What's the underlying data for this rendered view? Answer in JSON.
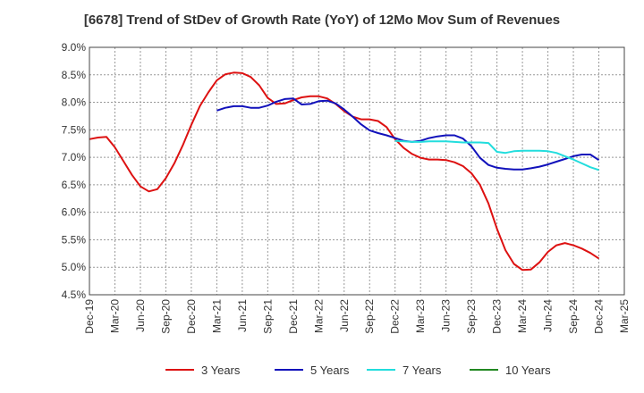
{
  "chart_data": {
    "type": "line",
    "title": "[6678]  Trend of StDev of Growth Rate (YoY) of 12Mo Mov Sum of Revenues",
    "xlabel": "",
    "ylabel": "",
    "ylim": [
      4.5,
      9.0
    ],
    "yticks": [
      "9.0%",
      "8.5%",
      "8.0%",
      "7.5%",
      "7.0%",
      "6.5%",
      "6.0%",
      "5.5%",
      "5.0%",
      "4.5%"
    ],
    "ytick_values": [
      9.0,
      8.5,
      8.0,
      7.5,
      7.0,
      6.5,
      6.0,
      5.5,
      5.0,
      4.5
    ],
    "xticks": [
      "Dec-19",
      "Mar-20",
      "Jun-20",
      "Sep-20",
      "Dec-20",
      "Mar-21",
      "Jun-21",
      "Sep-21",
      "Dec-21",
      "Mar-22",
      "Jun-22",
      "Sep-22",
      "Dec-22",
      "Mar-23",
      "Jun-23",
      "Sep-23",
      "Dec-23",
      "Mar-24",
      "Jun-24",
      "Sep-24",
      "Dec-24",
      "Mar-25"
    ],
    "x_range_months": [
      0,
      63
    ],
    "grid": true,
    "legend_position": "bottom",
    "series": [
      {
        "name": "3 Years",
        "color": "#dd1111",
        "x_months": [
          0,
          1,
          2,
          3,
          4,
          5,
          6,
          7,
          8,
          9,
          10,
          11,
          12,
          13,
          14,
          15,
          16,
          17,
          18,
          19,
          20,
          21,
          22,
          23,
          24,
          25,
          26,
          27,
          28,
          29,
          30,
          31,
          32,
          33,
          34,
          35,
          36,
          37,
          38,
          39,
          40,
          41,
          42,
          43,
          44,
          45,
          46,
          47,
          48,
          49,
          50,
          51,
          52,
          53,
          54,
          55,
          56,
          57,
          58,
          59,
          60
        ],
        "values": [
          7.33,
          7.36,
          7.37,
          7.18,
          6.93,
          6.68,
          6.47,
          6.38,
          6.42,
          6.62,
          6.89,
          7.22,
          7.59,
          7.93,
          8.18,
          8.4,
          8.51,
          8.54,
          8.53,
          8.46,
          8.31,
          8.08,
          7.97,
          7.98,
          8.04,
          8.09,
          8.11,
          8.11,
          8.07,
          7.97,
          7.84,
          7.74,
          7.69,
          7.69,
          7.66,
          7.55,
          7.33,
          7.17,
          7.06,
          6.99,
          6.96,
          6.96,
          6.95,
          6.91,
          6.84,
          6.71,
          6.5,
          6.16,
          5.7,
          5.31,
          5.06,
          4.95,
          4.96,
          5.09,
          5.28,
          5.4,
          5.44,
          5.4,
          5.34,
          5.26,
          5.16
        ]
      },
      {
        "name": "5 Years",
        "color": "#1111bb",
        "x_months": [
          15,
          16,
          17,
          18,
          19,
          20,
          21,
          22,
          23,
          24,
          25,
          26,
          27,
          28,
          29,
          30,
          31,
          32,
          33,
          34,
          35,
          36,
          37,
          38,
          39,
          40,
          41,
          42,
          43,
          44,
          45,
          46,
          47,
          48,
          49,
          50,
          51,
          52,
          53,
          54,
          55,
          56,
          57,
          58,
          59,
          60
        ],
        "values": [
          7.85,
          7.9,
          7.93,
          7.93,
          7.9,
          7.9,
          7.94,
          8.01,
          8.06,
          8.07,
          7.96,
          7.97,
          8.02,
          8.03,
          7.98,
          7.87,
          7.74,
          7.6,
          7.49,
          7.44,
          7.4,
          7.35,
          7.3,
          7.28,
          7.3,
          7.35,
          7.38,
          7.4,
          7.4,
          7.34,
          7.2,
          6.99,
          6.86,
          6.81,
          6.79,
          6.78,
          6.78,
          6.8,
          6.83,
          6.87,
          6.92,
          6.97,
          7.02,
          7.05,
          7.05,
          6.95
        ]
      },
      {
        "name": "7 Years",
        "color": "#22dddd",
        "x_months": [
          36,
          37,
          38,
          39,
          40,
          41,
          42,
          43,
          44,
          45,
          46,
          47,
          48,
          49,
          50,
          51,
          52,
          53,
          54,
          55,
          56,
          57,
          58,
          59,
          60
        ],
        "values": [
          7.3,
          7.29,
          7.28,
          7.28,
          7.29,
          7.29,
          7.29,
          7.28,
          7.27,
          7.27,
          7.27,
          7.26,
          7.1,
          7.08,
          7.11,
          7.12,
          7.12,
          7.12,
          7.11,
          7.08,
          7.02,
          6.96,
          6.89,
          6.82,
          6.77
        ]
      },
      {
        "name": "10 Years",
        "color": "#228822",
        "x_months": [],
        "values": []
      }
    ]
  }
}
